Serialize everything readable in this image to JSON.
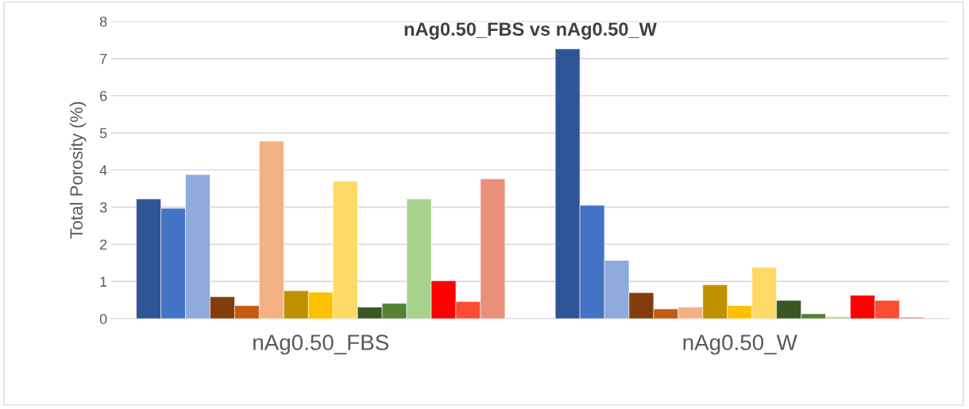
{
  "chart_data": {
    "type": "bar",
    "title": "nAg0.50_FBS vs nAg0.50_W",
    "ylabel": "Total Porosity (%)",
    "categories": [
      "nAg0.50_FBS",
      "nAg0.50_W"
    ],
    "series": [
      {
        "color": "#2f5597",
        "values": [
          3.22,
          7.26
        ]
      },
      {
        "color": "#4472c4",
        "values": [
          2.97,
          3.05
        ]
      },
      {
        "color": "#8faadc",
        "values": [
          3.88,
          1.57
        ]
      },
      {
        "color": "#843c0c",
        "values": [
          0.59,
          0.7
        ]
      },
      {
        "color": "#c55a11",
        "values": [
          0.35,
          0.26
        ]
      },
      {
        "color": "#f4b183",
        "values": [
          4.78,
          0.31
        ]
      },
      {
        "color": "#bf9000",
        "values": [
          0.75,
          0.91
        ]
      },
      {
        "color": "#ffc000",
        "values": [
          0.71,
          0.35
        ]
      },
      {
        "color": "#ffd966",
        "values": [
          3.7,
          1.38
        ]
      },
      {
        "color": "#385723",
        "values": [
          0.31,
          0.49
        ]
      },
      {
        "color": "#548235",
        "values": [
          0.41,
          0.13
        ]
      },
      {
        "color": "#a9d18e",
        "values": [
          3.22,
          0.05
        ]
      },
      {
        "color": "#ff0000",
        "values": [
          1.02,
          0.63
        ]
      },
      {
        "color": "#f94d33",
        "values": [
          0.46,
          0.49
        ]
      },
      {
        "color": "#e9907b",
        "values": [
          3.76,
          0.04
        ]
      }
    ],
    "ylim": [
      0,
      8
    ],
    "yticks": [
      0,
      1,
      2,
      3,
      4,
      5,
      6,
      7,
      8
    ],
    "grid": "y",
    "legend": false
  }
}
